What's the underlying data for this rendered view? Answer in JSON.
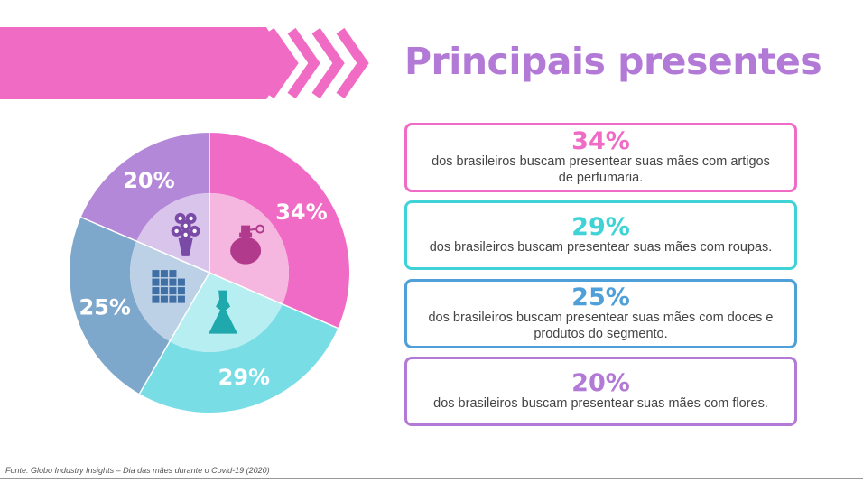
{
  "title": "Principais presentes",
  "source": "Fonte: Globo Industry Insights  – Dia das mães durante o Covid-19 (2020)",
  "colors": {
    "title": "#b27ad6",
    "banner": "#f06cc4"
  },
  "chart_data": {
    "type": "pie",
    "slices": [
      {
        "label": "34%",
        "value": 34,
        "icon": "perfume-icon",
        "color": "#ef6bc5",
        "inner": "#f5b6df",
        "icon_color": "#b23a8c"
      },
      {
        "label": "29%",
        "value": 29,
        "icon": "dress-icon",
        "color": "#79dde6",
        "inner": "#b7eef2",
        "icon_color": "#1fa9ad"
      },
      {
        "label": "25%",
        "value": 25,
        "icon": "chocolate-icon",
        "color": "#7ea7cc",
        "inner": "#bcd1e5",
        "icon_color": "#3f6fa5"
      },
      {
        "label": "20%",
        "value": 20,
        "icon": "bouquet-icon",
        "color": "#b488d8",
        "inner": "#d9c4ec",
        "icon_color": "#7a4ba6"
      }
    ]
  },
  "cards": [
    {
      "pct": "34%",
      "text": "dos brasileiros buscam presentear suas mães com artigos de perfumaria.",
      "color": "#ef6bc5"
    },
    {
      "pct": "29%",
      "text": "dos brasileiros buscam presentear suas mães com roupas.",
      "color": "#3fd3d8"
    },
    {
      "pct": "25%",
      "text": "dos brasileiros buscam presentear suas mães com doces e produtos do segmento.",
      "color": "#4f9fd8"
    },
    {
      "pct": "20%",
      "text": "dos brasileiros buscam presentear suas mães com flores.",
      "color": "#b27ad6"
    }
  ]
}
